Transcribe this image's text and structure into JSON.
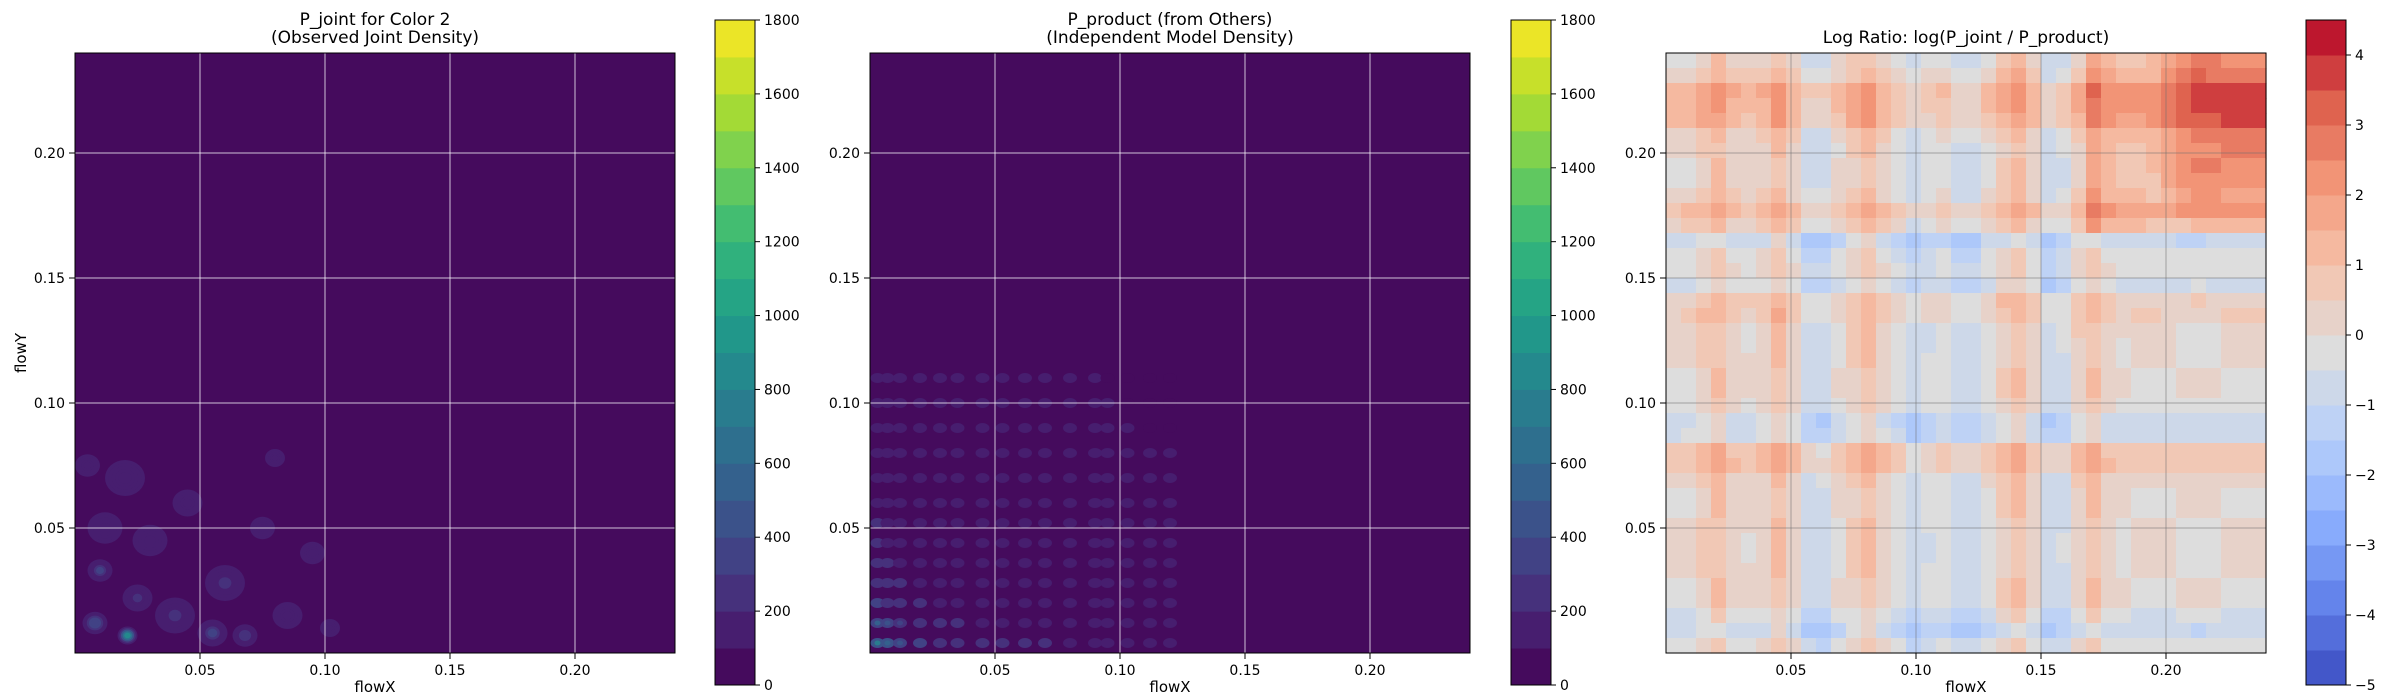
{
  "chart_data": [
    {
      "type": "heatmap",
      "title_line1": "P_joint for Color 2",
      "title_line2": "(Observed Joint Density)",
      "xlabel": "flowX",
      "ylabel": "flowY",
      "xlim": [
        0.0,
        0.24
      ],
      "ylim": [
        0.0,
        0.24
      ],
      "xticks": [
        0.05,
        0.1,
        0.15,
        0.2
      ],
      "xtick_labels": [
        "0.05",
        "0.10",
        "0.15",
        "0.20"
      ],
      "yticks": [
        0.05,
        0.1,
        0.15,
        0.2
      ],
      "ytick_labels": [
        "0.05",
        "0.10",
        "0.15",
        "0.20"
      ],
      "grid": true,
      "colormap": "viridis",
      "colorbar": {
        "min": 0,
        "max": 1800,
        "ticks": [
          0,
          200,
          400,
          600,
          800,
          1000,
          1200,
          1400,
          1600,
          1800
        ],
        "tick_labels": [
          "0",
          "200",
          "400",
          "600",
          "800",
          "1000",
          "1200",
          "1400",
          "1600",
          "1800"
        ],
        "levels": 18
      },
      "background_value": 0,
      "hotspots": [
        {
          "x": 0.021,
          "y": 0.007,
          "r": 0.004,
          "v": 1100
        },
        {
          "x": 0.008,
          "y": 0.012,
          "r": 0.005,
          "v": 500
        },
        {
          "x": 0.01,
          "y": 0.033,
          "r": 0.005,
          "v": 420
        },
        {
          "x": 0.055,
          "y": 0.008,
          "r": 0.006,
          "v": 380
        },
        {
          "x": 0.068,
          "y": 0.007,
          "r": 0.005,
          "v": 330
        },
        {
          "x": 0.04,
          "y": 0.015,
          "r": 0.008,
          "v": 260
        },
        {
          "x": 0.06,
          "y": 0.028,
          "r": 0.008,
          "v": 240
        },
        {
          "x": 0.012,
          "y": 0.05,
          "r": 0.007,
          "v": 230
        },
        {
          "x": 0.02,
          "y": 0.07,
          "r": 0.008,
          "v": 200
        },
        {
          "x": 0.085,
          "y": 0.015,
          "r": 0.006,
          "v": 210
        },
        {
          "x": 0.095,
          "y": 0.04,
          "r": 0.005,
          "v": 180
        },
        {
          "x": 0.03,
          "y": 0.045,
          "r": 0.007,
          "v": 200
        },
        {
          "x": 0.045,
          "y": 0.06,
          "r": 0.006,
          "v": 190
        },
        {
          "x": 0.075,
          "y": 0.05,
          "r": 0.005,
          "v": 175
        },
        {
          "x": 0.08,
          "y": 0.078,
          "r": 0.004,
          "v": 170
        },
        {
          "x": 0.005,
          "y": 0.075,
          "r": 0.005,
          "v": 180
        },
        {
          "x": 0.025,
          "y": 0.022,
          "r": 0.006,
          "v": 280
        },
        {
          "x": 0.102,
          "y": 0.01,
          "r": 0.004,
          "v": 160
        }
      ]
    },
    {
      "type": "heatmap",
      "title_line1": "P_product (from Others)",
      "title_line2": "(Independent Model Density)",
      "xlabel": "flowX",
      "ylabel": "",
      "xlim": [
        0.0,
        0.24
      ],
      "ylim": [
        0.0,
        0.24
      ],
      "xticks": [
        0.05,
        0.1,
        0.15,
        0.2
      ],
      "xtick_labels": [
        "0.05",
        "0.10",
        "0.15",
        "0.20"
      ],
      "yticks": [
        0.05,
        0.1,
        0.15,
        0.2
      ],
      "ytick_labels": [
        "0.05",
        "0.10",
        "0.15",
        "0.20"
      ],
      "grid": true,
      "colormap": "viridis",
      "colorbar": {
        "min": 0,
        "max": 1800,
        "ticks": [
          0,
          200,
          400,
          600,
          800,
          1000,
          1200,
          1400,
          1600,
          1800
        ],
        "tick_labels": [
          "0",
          "200",
          "400",
          "600",
          "800",
          "1000",
          "1200",
          "1400",
          "1600",
          "1800"
        ],
        "levels": 18
      },
      "background_value": 0,
      "x_marginal_peaks": [
        0.003,
        0.007,
        0.012,
        0.02,
        0.028,
        0.035,
        0.045,
        0.053,
        0.062,
        0.07,
        0.08,
        0.09,
        0.095,
        0.103,
        0.112,
        0.12
      ],
      "y_marginal_peaks": [
        0.004,
        0.012,
        0.02,
        0.028,
        0.036,
        0.044,
        0.052,
        0.06,
        0.07,
        0.08,
        0.09,
        0.1,
        0.11
      ],
      "grid_points_value": 250,
      "peak_value": 700
    },
    {
      "type": "heatmap",
      "title": "Log Ratio: log(P_joint / P_product)",
      "xlabel": "flowX",
      "ylabel": "",
      "xlim": [
        0.0,
        0.24
      ],
      "ylim": [
        0.0,
        0.24
      ],
      "xticks": [
        0.05,
        0.1,
        0.15,
        0.2
      ],
      "xtick_labels": [
        "0.05",
        "0.10",
        "0.15",
        "0.20"
      ],
      "yticks": [
        0.05,
        0.1,
        0.15,
        0.2
      ],
      "ytick_labels": [
        "0.05",
        "0.10",
        "0.15",
        "0.20"
      ],
      "grid": true,
      "colormap": "coolwarm",
      "colorbar": {
        "min": -5,
        "max": 4.5,
        "ticks": [
          -5,
          -4,
          -3,
          -2,
          -1,
          0,
          1,
          2,
          3,
          4
        ],
        "tick_labels": [
          "−5",
          "−4",
          "−3",
          "−2",
          "−1",
          "0",
          "1",
          "2",
          "3",
          "4"
        ],
        "levels": 19
      },
      "strong_positive_region": {
        "x": [
          0.19,
          0.24
        ],
        "y": [
          0.17,
          0.24
        ],
        "value": 2.5
      },
      "positive_rows": [
        0.078,
        0.14,
        0.175,
        0.215,
        0.225
      ],
      "negative_rows": [
        0.09,
        0.165,
        0.145,
        0.01
      ],
      "positive_cols": [
        0.02,
        0.08,
        0.14,
        0.17,
        0.045
      ],
      "negative_cols": [
        0.1,
        0.12,
        0.06,
        0.155
      ]
    }
  ]
}
